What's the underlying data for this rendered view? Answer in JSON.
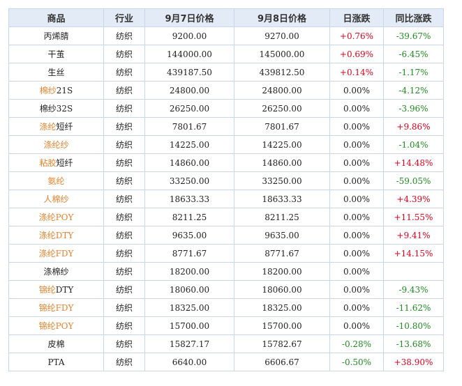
{
  "table": {
    "headers": [
      "商品",
      "行业",
      "9月7日价格",
      "9月8日价格",
      "日涨跌",
      "同比涨跌"
    ],
    "colors": {
      "link": "#e8822d",
      "up": "#e0001a",
      "down": "#1f8a1f",
      "header_bg": "#e3ebf7",
      "border": "#c9d6ea"
    },
    "rows": [
      {
        "name_link": "",
        "name_plain": "丙烯腈",
        "industry": "纺织",
        "price_sep7": "9200.00",
        "price_sep8": "9270.00",
        "daily_change": "+0.76%",
        "daily_dir": "up",
        "yoy_change": "-39.67%",
        "yoy_dir": "down"
      },
      {
        "name_link": "",
        "name_plain": "干茧",
        "industry": "纺织",
        "price_sep7": "144000.00",
        "price_sep8": "145000.00",
        "daily_change": "+0.69%",
        "daily_dir": "up",
        "yoy_change": "-6.45%",
        "yoy_dir": "down"
      },
      {
        "name_link": "",
        "name_plain": "生丝",
        "industry": "纺织",
        "price_sep7": "439187.50",
        "price_sep8": "439812.50",
        "daily_change": "+0.14%",
        "daily_dir": "up",
        "yoy_change": "-1.17%",
        "yoy_dir": "down"
      },
      {
        "name_link": "棉纱",
        "name_plain": "21S",
        "industry": "纺织",
        "price_sep7": "24800.00",
        "price_sep8": "24800.00",
        "daily_change": "0.00%",
        "daily_dir": "flat",
        "yoy_change": "-4.12%",
        "yoy_dir": "down"
      },
      {
        "name_link": "",
        "name_plain": "棉纱32S",
        "industry": "纺织",
        "price_sep7": "26250.00",
        "price_sep8": "26250.00",
        "daily_change": "0.00%",
        "daily_dir": "flat",
        "yoy_change": "-3.96%",
        "yoy_dir": "down"
      },
      {
        "name_link": "涤纶",
        "name_plain": "短纤",
        "industry": "纺织",
        "price_sep7": "7801.67",
        "price_sep8": "7801.67",
        "daily_change": "0.00%",
        "daily_dir": "flat",
        "yoy_change": "+9.86%",
        "yoy_dir": "up"
      },
      {
        "name_link": "涤纶纱",
        "name_plain": "",
        "industry": "纺织",
        "price_sep7": "14225.00",
        "price_sep8": "14225.00",
        "daily_change": "0.00%",
        "daily_dir": "flat",
        "yoy_change": "-1.04%",
        "yoy_dir": "down"
      },
      {
        "name_link": "粘胶",
        "name_plain": "短纤",
        "industry": "纺织",
        "price_sep7": "14860.00",
        "price_sep8": "14860.00",
        "daily_change": "0.00%",
        "daily_dir": "flat",
        "yoy_change": "+14.48%",
        "yoy_dir": "up"
      },
      {
        "name_link": "氨纶",
        "name_plain": "",
        "industry": "纺织",
        "price_sep7": "33250.00",
        "price_sep8": "33250.00",
        "daily_change": "0.00%",
        "daily_dir": "flat",
        "yoy_change": "-59.05%",
        "yoy_dir": "down"
      },
      {
        "name_link": "人棉纱",
        "name_plain": "",
        "industry": "纺织",
        "price_sep7": "18633.33",
        "price_sep8": "18633.33",
        "daily_change": "0.00%",
        "daily_dir": "flat",
        "yoy_change": "+4.39%",
        "yoy_dir": "up"
      },
      {
        "name_link": "涤纶POY",
        "name_plain": "",
        "industry": "纺织",
        "price_sep7": "8211.25",
        "price_sep8": "8211.25",
        "daily_change": "0.00%",
        "daily_dir": "flat",
        "yoy_change": "+11.55%",
        "yoy_dir": "up"
      },
      {
        "name_link": "涤纶DTY",
        "name_plain": "",
        "industry": "纺织",
        "price_sep7": "9635.00",
        "price_sep8": "9635.00",
        "daily_change": "0.00%",
        "daily_dir": "flat",
        "yoy_change": "+9.41%",
        "yoy_dir": "up"
      },
      {
        "name_link": "涤纶FDY",
        "name_plain": "",
        "industry": "纺织",
        "price_sep7": "8771.67",
        "price_sep8": "8771.67",
        "daily_change": "0.00%",
        "daily_dir": "flat",
        "yoy_change": "+14.15%",
        "yoy_dir": "up"
      },
      {
        "name_link": "",
        "name_plain": "涤棉纱",
        "industry": "纺织",
        "price_sep7": "18200.00",
        "price_sep8": "18200.00",
        "daily_change": "0.00%",
        "daily_dir": "flat",
        "yoy_change": "",
        "yoy_dir": "flat"
      },
      {
        "name_link": "锦纶",
        "name_plain": "DTY",
        "industry": "纺织",
        "price_sep7": "18060.00",
        "price_sep8": "18060.00",
        "daily_change": "0.00%",
        "daily_dir": "flat",
        "yoy_change": "-9.43%",
        "yoy_dir": "down"
      },
      {
        "name_link": "锦纶FDY",
        "name_plain": "",
        "industry": "纺织",
        "price_sep7": "18325.00",
        "price_sep8": "18325.00",
        "daily_change": "0.00%",
        "daily_dir": "flat",
        "yoy_change": "-11.62%",
        "yoy_dir": "down"
      },
      {
        "name_link": "锦纶POY",
        "name_plain": "",
        "industry": "纺织",
        "price_sep7": "15700.00",
        "price_sep8": "15700.00",
        "daily_change": "0.00%",
        "daily_dir": "flat",
        "yoy_change": "-10.80%",
        "yoy_dir": "down"
      },
      {
        "name_link": "",
        "name_plain": "皮棉",
        "industry": "纺织",
        "price_sep7": "15827.17",
        "price_sep8": "15782.67",
        "daily_change": "-0.28%",
        "daily_dir": "down",
        "yoy_change": "-13.68%",
        "yoy_dir": "down"
      },
      {
        "name_link": "",
        "name_plain": "PTA",
        "industry": "纺织",
        "price_sep7": "6640.00",
        "price_sep8": "6606.67",
        "daily_change": "-0.50%",
        "daily_dir": "down",
        "yoy_change": "+38.90%",
        "yoy_dir": "up"
      }
    ]
  }
}
